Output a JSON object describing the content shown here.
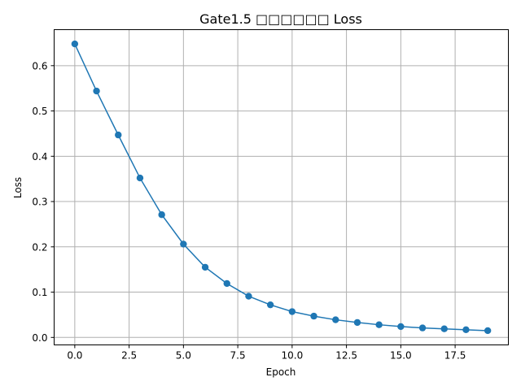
{
  "chart_data": {
    "type": "line",
    "title": "Gate1.5 □□□□□□ Loss",
    "xlabel": "Epoch",
    "ylabel": "Loss",
    "xlim": [
      -0.95,
      19.95
    ],
    "ylim": [
      -0.0165,
      0.6795
    ],
    "xticks": [
      0.0,
      2.5,
      5.0,
      7.5,
      10.0,
      12.5,
      15.0,
      17.5
    ],
    "xtick_labels": [
      "0.0",
      "2.5",
      "5.0",
      "7.5",
      "10.0",
      "12.5",
      "15.0",
      "17.5"
    ],
    "yticks": [
      0.0,
      0.1,
      0.2,
      0.3,
      0.4,
      0.5,
      0.6
    ],
    "ytick_labels": [
      "0.0",
      "0.1",
      "0.2",
      "0.3",
      "0.4",
      "0.5",
      "0.6"
    ],
    "grid": true,
    "line_color": "#1f77b4",
    "series": [
      {
        "x": [
          0,
          1,
          2,
          3,
          4,
          5,
          6,
          7,
          8,
          9,
          10,
          11,
          12,
          13,
          14,
          15,
          16,
          17,
          18,
          19
        ],
        "values": [
          0.648,
          0.544,
          0.447,
          0.352,
          0.271,
          0.206,
          0.155,
          0.119,
          0.091,
          0.072,
          0.057,
          0.047,
          0.039,
          0.033,
          0.028,
          0.024,
          0.021,
          0.019,
          0.017,
          0.015
        ]
      }
    ]
  }
}
